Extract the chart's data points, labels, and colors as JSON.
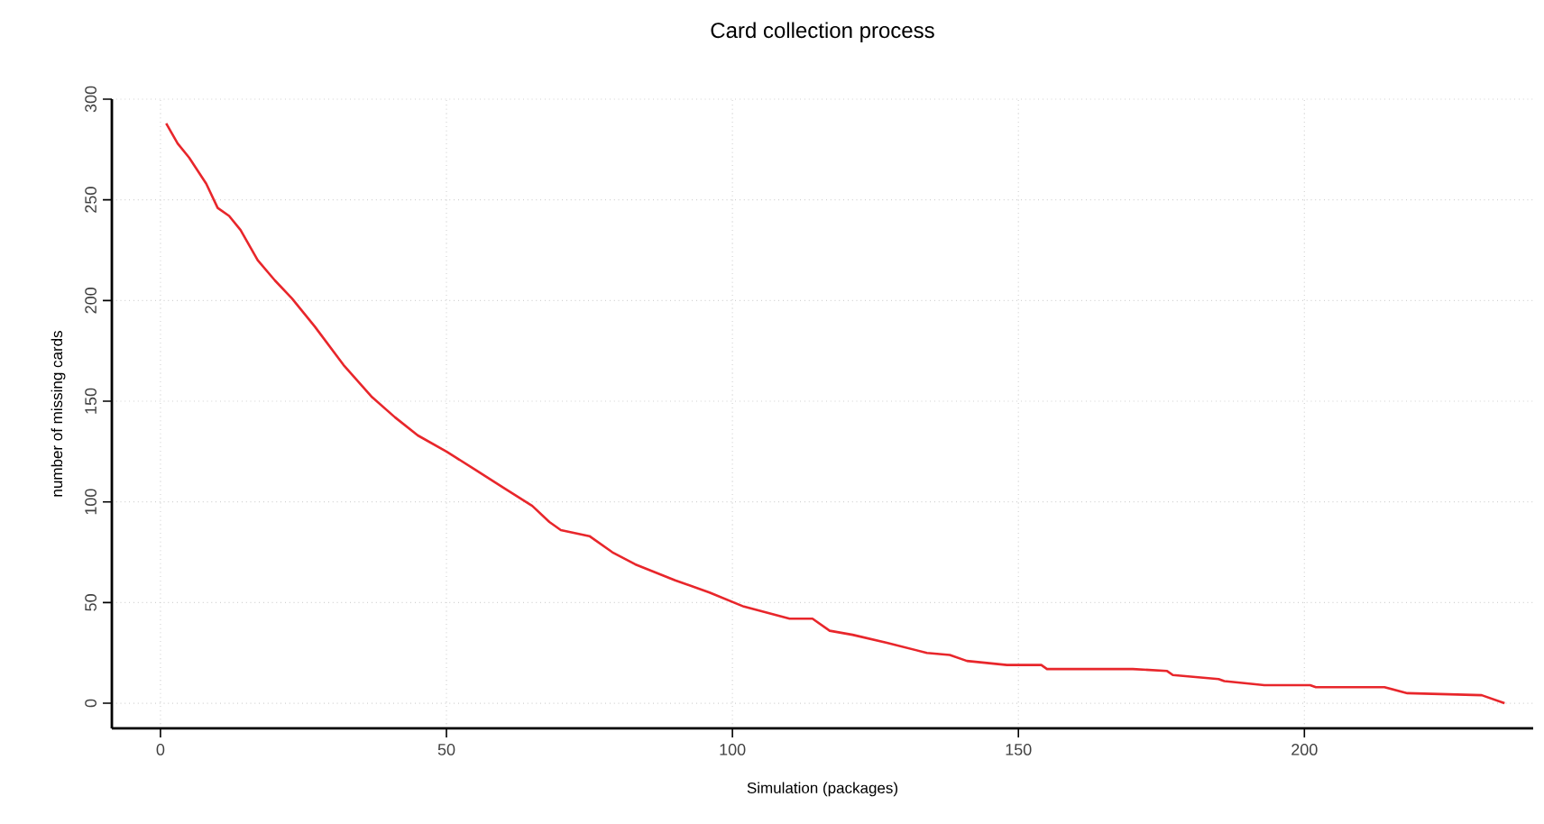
{
  "chart_data": {
    "type": "line",
    "title": "Card collection process",
    "xlabel": "Simulation (packages)",
    "ylabel": "number of missing cards",
    "x": [
      1,
      3,
      5,
      8,
      10,
      12,
      14,
      17,
      20,
      23,
      27,
      32,
      37,
      41,
      45,
      50,
      55,
      60,
      65,
      68,
      70,
      75,
      79,
      83,
      90,
      96,
      102,
      110,
      114,
      117,
      121,
      127,
      134,
      138,
      141,
      148,
      154,
      155,
      170,
      176,
      177,
      185,
      186,
      193,
      201,
      202,
      214,
      218,
      231,
      235
    ],
    "series": [
      {
        "color": "#e8262b",
        "values": [
          288,
          278,
          271,
          258,
          246,
          242,
          235,
          220,
          210,
          201,
          187,
          168,
          152,
          142,
          133,
          125,
          116,
          107,
          98,
          90,
          86,
          83,
          75,
          69,
          61,
          55,
          48,
          42,
          42,
          36,
          34,
          30,
          25,
          24,
          21,
          19,
          19,
          17,
          17,
          16,
          14,
          12,
          11,
          9,
          9,
          8,
          8,
          5,
          4,
          0
        ]
      }
    ],
    "xlim": [
      -8.5,
      240
    ],
    "ylim": [
      -12.5,
      300
    ],
    "xticks": [
      0,
      50,
      100,
      150,
      200
    ],
    "yticks": [
      0,
      50,
      100,
      150,
      200,
      250,
      300
    ],
    "grid": true,
    "marker": "none",
    "line_style": "solid"
  }
}
